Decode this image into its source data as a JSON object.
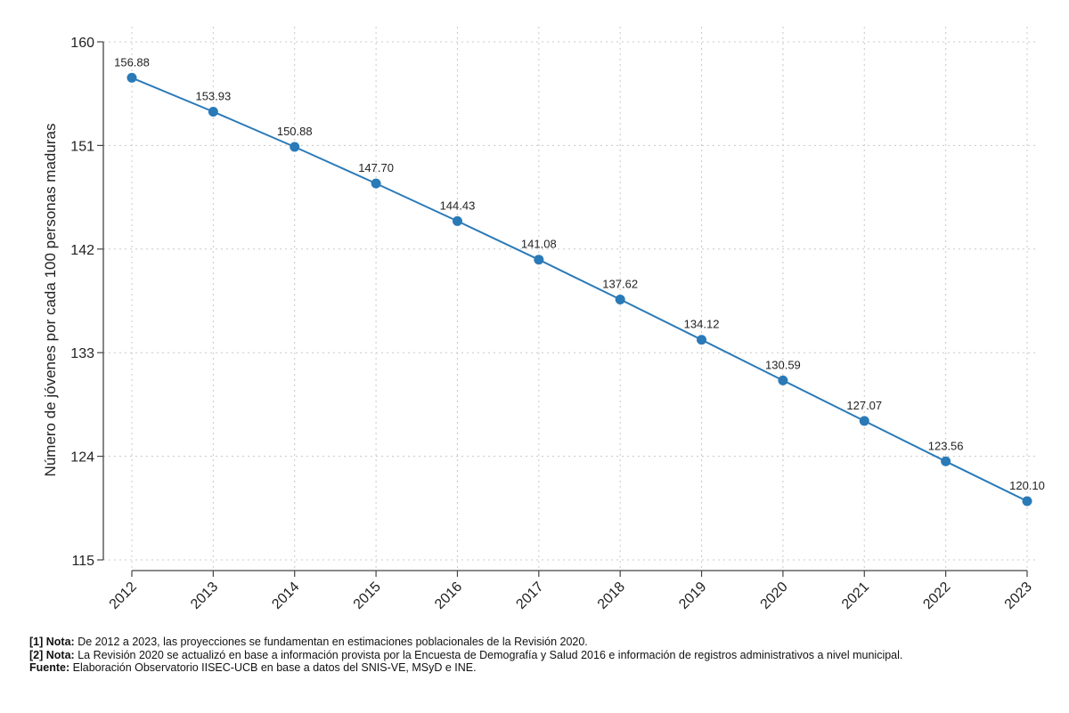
{
  "chart_data": {
    "type": "line",
    "title": "",
    "xlabel": "",
    "ylabel": "Número de jóvenes por cada 100 personas maduras",
    "x": [
      "2012",
      "2013",
      "2014",
      "2015",
      "2016",
      "2017",
      "2018",
      "2019",
      "2020",
      "2021",
      "2022",
      "2023"
    ],
    "series": [
      {
        "values": [
          156.88,
          153.93,
          150.88,
          147.7,
          144.43,
          141.08,
          137.62,
          134.12,
          130.59,
          127.07,
          123.56,
          120.1
        ]
      }
    ],
    "data_labels": [
      "156.88",
      "153.93",
      "150.88",
      "147.70",
      "144.43",
      "141.08",
      "137.62",
      "134.12",
      "130.59",
      "127.07",
      "123.56",
      "120.10"
    ],
    "ylim": [
      115,
      160
    ],
    "yticks": [
      115,
      124,
      133,
      142,
      151,
      160
    ],
    "grid": true,
    "legend": "none",
    "colors": {
      "series": "#2a7ab8",
      "axis": "#444444",
      "grid": "#c8c8c8"
    }
  },
  "notes": [
    {
      "key": "[1] Nota:",
      "text": "De 2012 a 2023, las proyecciones se fundamentan en estimaciones poblacionales de la Revisión 2020."
    },
    {
      "key": "[2] Nota:",
      "text": "La Revisión 2020 se actualizó en base a información provista por la Encuesta de Demografía y Salud 2016 e información de registros administrativos a nivel municipal."
    },
    {
      "key": "Fuente:",
      "text": "Elaboración Observatorio IISEC-UCB en base a datos del SNIS-VE, MSyD e INE."
    }
  ]
}
